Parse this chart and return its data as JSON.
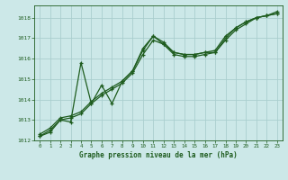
{
  "title": "Graphe pression niveau de la mer (hPa)",
  "xlim": [
    -0.5,
    23.5
  ],
  "ylim": [
    1012,
    1018.6
  ],
  "yticks": [
    1012,
    1013,
    1014,
    1015,
    1016,
    1017,
    1018
  ],
  "xticks": [
    0,
    1,
    2,
    3,
    4,
    5,
    6,
    7,
    8,
    9,
    10,
    11,
    12,
    13,
    14,
    15,
    16,
    17,
    18,
    19,
    20,
    21,
    22,
    23
  ],
  "bg_color": "#cce8e8",
  "grid_color": "#aacece",
  "line_color": "#1e5c1e",
  "series1_x": [
    0,
    1,
    2,
    3,
    4,
    5,
    6,
    7,
    8,
    9,
    10,
    11,
    12,
    13,
    14,
    15,
    16,
    17,
    18,
    19,
    20,
    21,
    22,
    23
  ],
  "series1_y": [
    1012.3,
    1012.6,
    1013.1,
    1013.2,
    1013.4,
    1013.9,
    1014.3,
    1014.6,
    1014.9,
    1015.4,
    1016.4,
    1017.1,
    1016.8,
    1016.3,
    1016.2,
    1016.2,
    1016.3,
    1016.3,
    1017.0,
    1017.5,
    1017.8,
    1018.0,
    1018.1,
    1018.2
  ],
  "series2_x": [
    0,
    1,
    2,
    3,
    4,
    5,
    6,
    7,
    8,
    9,
    10,
    11,
    12,
    13,
    14,
    15,
    16,
    17,
    18,
    19,
    20,
    21,
    22,
    23
  ],
  "series2_y": [
    1012.2,
    1012.5,
    1013.0,
    1013.1,
    1013.3,
    1013.8,
    1014.2,
    1014.5,
    1014.8,
    1015.3,
    1016.2,
    1016.9,
    1016.7,
    1016.2,
    1016.1,
    1016.1,
    1016.2,
    1016.3,
    1016.9,
    1017.4,
    1017.7,
    1018.0,
    1018.1,
    1018.2
  ],
  "series3_x": [
    0,
    1,
    2,
    3,
    4,
    5,
    6,
    7,
    8,
    9,
    10,
    11,
    12,
    13,
    14,
    15,
    16,
    17,
    18,
    19,
    20,
    21,
    22,
    23
  ],
  "series3_y": [
    1012.2,
    1012.4,
    1013.0,
    1012.9,
    1015.8,
    1013.8,
    1014.7,
    1013.8,
    1014.9,
    1015.4,
    1016.5,
    1017.1,
    1016.7,
    1016.3,
    1016.2,
    1016.2,
    1016.3,
    1016.4,
    1017.1,
    1017.5,
    1017.8,
    1018.0,
    1018.1,
    1018.3
  ]
}
